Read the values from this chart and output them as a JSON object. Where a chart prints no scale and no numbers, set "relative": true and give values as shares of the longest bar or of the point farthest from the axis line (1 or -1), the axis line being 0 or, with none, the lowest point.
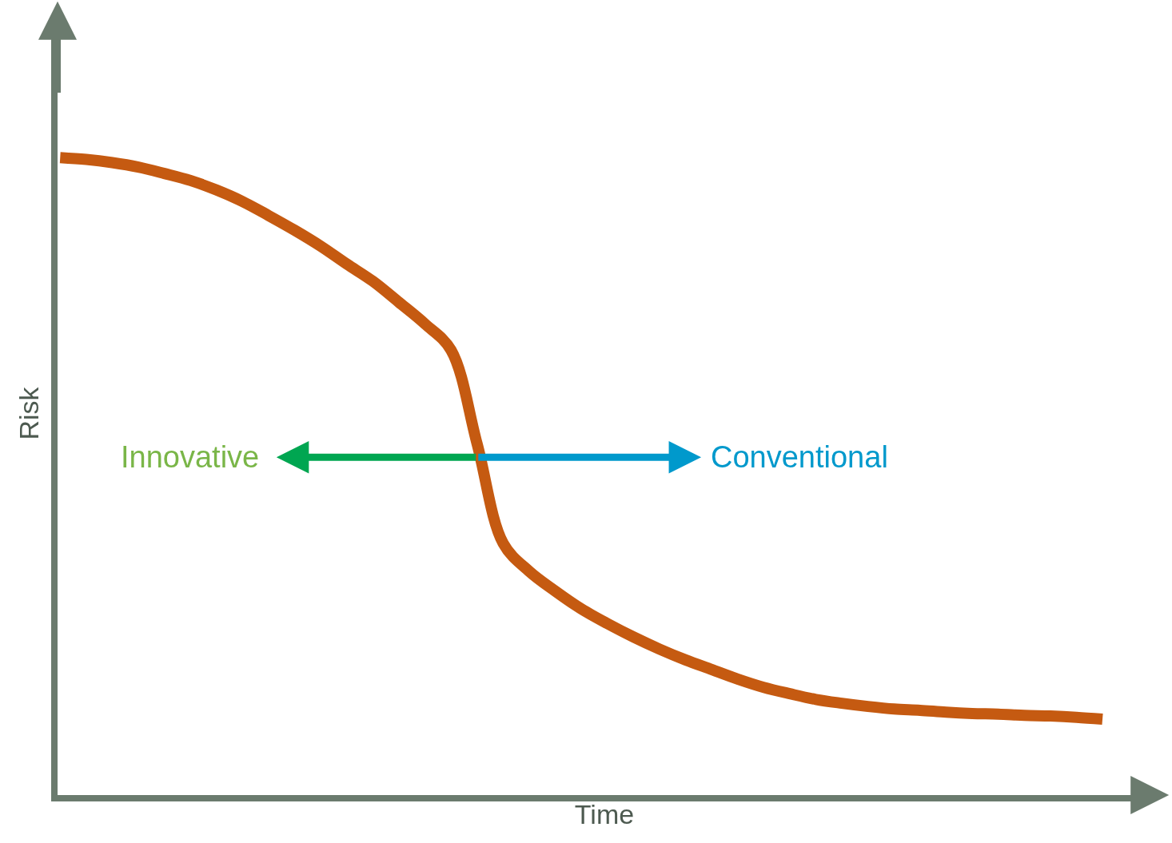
{
  "chart_data": {
    "type": "line",
    "relative": true,
    "xlabel": "Time",
    "ylabel": "Risk",
    "categories": [
      null,
      null,
      null,
      null,
      null,
      null,
      null,
      null,
      null,
      null,
      null,
      null,
      null,
      null,
      null,
      null,
      null,
      null,
      null,
      null,
      null,
      null,
      null,
      null,
      null,
      null,
      null,
      null,
      null,
      null,
      null,
      null,
      null,
      null,
      null,
      null,
      null,
      null,
      null,
      null,
      null
    ],
    "series": [
      {
        "color": "#c55a11",
        "values": [
          1.0,
          0.997,
          0.992,
          0.985,
          0.975,
          0.964,
          0.949,
          0.931,
          0.909,
          0.886,
          0.861,
          0.833,
          0.806,
          0.773,
          0.739,
          0.698,
          0.551,
          0.395,
          0.351,
          0.32,
          0.292,
          0.269,
          0.248,
          0.229,
          0.212,
          0.197,
          0.182,
          0.169,
          0.159,
          0.15,
          0.144,
          0.139,
          0.135,
          0.133,
          0.13,
          0.128,
          0.127,
          0.125,
          0.124,
          0.122,
          0.119
        ]
      }
    ],
    "annotations": [
      "Innovative",
      "Conventional"
    ],
    "marker": "none",
    "line_style": "solid"
  }
}
